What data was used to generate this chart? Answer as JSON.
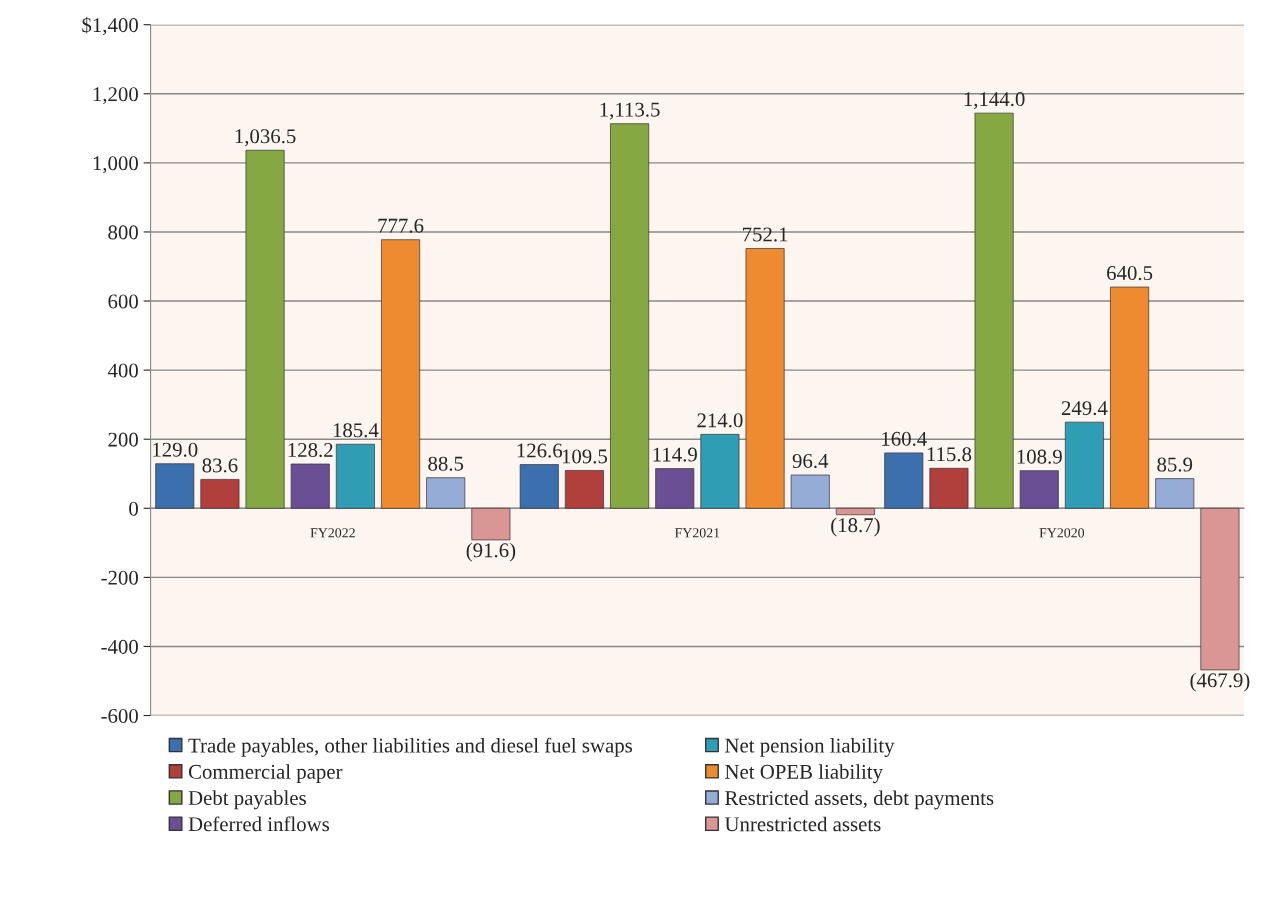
{
  "chart_data": {
    "type": "bar",
    "categories": [
      "FY2022",
      "FY2021",
      "FY2020"
    ],
    "series": [
      {
        "name": "Trade payables, other liabilities and diesel fuel swaps",
        "color": "#3b6fae",
        "values": [
          129.0,
          126.6,
          160.4
        ],
        "value_labels": [
          "129.0",
          "126.6",
          "160.4"
        ]
      },
      {
        "name": "Commercial paper",
        "color": "#b13f3c",
        "values": [
          83.6,
          109.5,
          115.8
        ],
        "value_labels": [
          "83.6",
          "109.5",
          "115.8"
        ]
      },
      {
        "name": "Debt payables",
        "color": "#86a843",
        "values": [
          1036.5,
          1113.5,
          1144.0
        ],
        "value_labels": [
          "1,036.5",
          "1,113.5",
          "1,144.0"
        ]
      },
      {
        "name": "Deferred inflows",
        "color": "#6a4f95",
        "values": [
          128.2,
          114.9,
          108.9
        ],
        "value_labels": [
          "128.2",
          "114.9",
          "108.9"
        ]
      },
      {
        "name": "Net pension liability",
        "color": "#2f9db3",
        "values": [
          185.4,
          214.0,
          249.4
        ],
        "value_labels": [
          "185.4",
          "214.0",
          "249.4"
        ]
      },
      {
        "name": "Net OPEB liability",
        "color": "#ee8a30",
        "values": [
          777.6,
          752.1,
          640.5
        ],
        "value_labels": [
          "777.6",
          "752.1",
          "640.5"
        ]
      },
      {
        "name": "Restricted assets, debt payments",
        "color": "#94acd6",
        "values": [
          88.5,
          96.4,
          85.9
        ],
        "value_labels": [
          "88.5",
          "96.4",
          "85.9"
        ]
      },
      {
        "name": "Unrestricted assets",
        "color": "#d99694",
        "values": [
          -91.6,
          -18.7,
          -467.9
        ],
        "value_labels": [
          "(91.6)",
          "(18.7)",
          "(467.9)"
        ]
      }
    ],
    "ylim": [
      -600,
      1400
    ],
    "yticks": [
      -600,
      -400,
      -200,
      0,
      200,
      400,
      600,
      800,
      {
        "value": 1000,
        "label": "1,000"
      },
      {
        "value": 1200,
        "label": "1,200"
      },
      {
        "value": 1400,
        "label": "$1,400"
      }
    ],
    "grid": "y",
    "legend": "bottom"
  }
}
